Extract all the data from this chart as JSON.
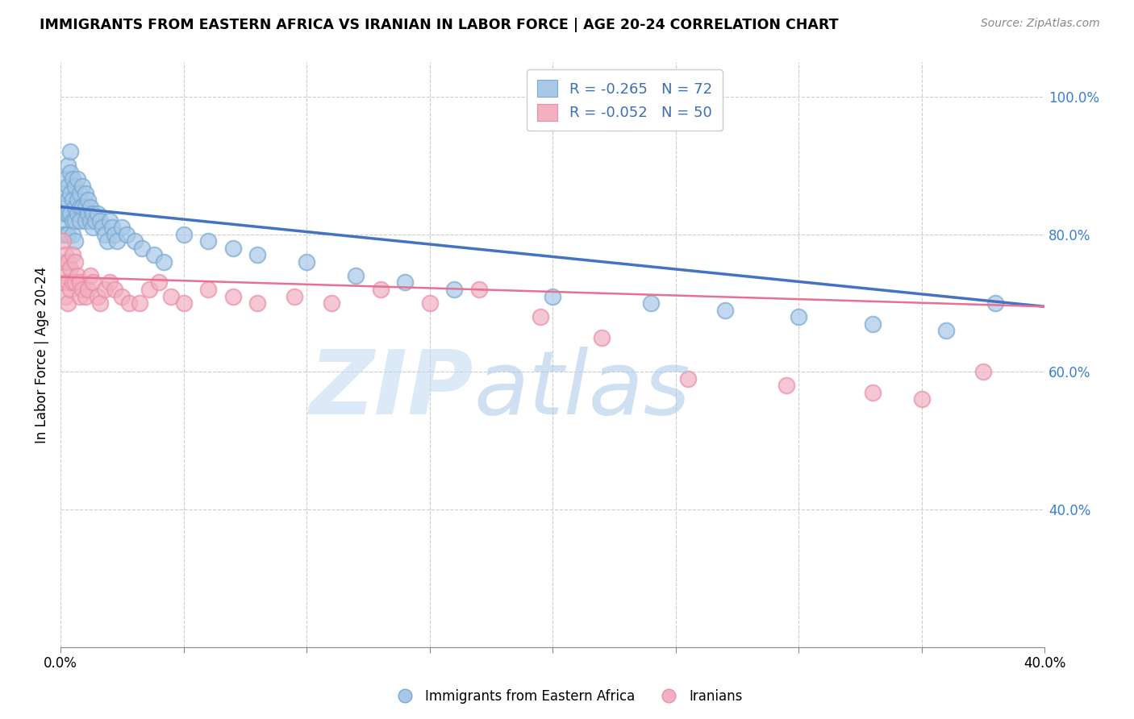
{
  "title": "IMMIGRANTS FROM EASTERN AFRICA VS IRANIAN IN LABOR FORCE | AGE 20-24 CORRELATION CHART",
  "source": "Source: ZipAtlas.com",
  "ylabel": "In Labor Force | Age 20-24",
  "xlim": [
    0.0,
    0.4
  ],
  "ylim": [
    0.2,
    1.05
  ],
  "x_ticks": [
    0.0,
    0.05,
    0.1,
    0.15,
    0.2,
    0.25,
    0.3,
    0.35,
    0.4
  ],
  "x_tick_labels": [
    "0.0%",
    "",
    "",
    "",
    "",
    "",
    "",
    "",
    "40.0%"
  ],
  "y_ticks_right": [
    0.4,
    0.6,
    0.8,
    1.0
  ],
  "y_tick_labels_right": [
    "40.0%",
    "60.0%",
    "80.0%",
    "100.0%"
  ],
  "blue_R": "-0.265",
  "blue_N": "72",
  "pink_R": "-0.052",
  "pink_N": "50",
  "blue_color": "#A8C8E8",
  "pink_color": "#F2B0C0",
  "blue_edge_color": "#7AAAD0",
  "pink_edge_color": "#E890A8",
  "blue_line_color": "#4472C4",
  "pink_line_color": "#E87090",
  "watermark_zip_color": "#C8DCF0",
  "watermark_atlas_color": "#A8C8E8",
  "blue_scatter_x": [
    0.001,
    0.001,
    0.001,
    0.002,
    0.002,
    0.002,
    0.002,
    0.003,
    0.003,
    0.003,
    0.003,
    0.003,
    0.004,
    0.004,
    0.004,
    0.004,
    0.005,
    0.005,
    0.005,
    0.005,
    0.006,
    0.006,
    0.006,
    0.006,
    0.007,
    0.007,
    0.007,
    0.008,
    0.008,
    0.008,
    0.009,
    0.009,
    0.01,
    0.01,
    0.01,
    0.011,
    0.011,
    0.012,
    0.012,
    0.013,
    0.013,
    0.014,
    0.015,
    0.016,
    0.017,
    0.018,
    0.019,
    0.02,
    0.021,
    0.022,
    0.023,
    0.025,
    0.027,
    0.03,
    0.033,
    0.038,
    0.042,
    0.05,
    0.06,
    0.07,
    0.08,
    0.1,
    0.12,
    0.14,
    0.16,
    0.2,
    0.24,
    0.27,
    0.3,
    0.33,
    0.36,
    0.38
  ],
  "blue_scatter_y": [
    0.84,
    0.82,
    0.8,
    0.88,
    0.86,
    0.83,
    0.8,
    0.9,
    0.87,
    0.85,
    0.83,
    0.8,
    0.92,
    0.89,
    0.86,
    0.83,
    0.88,
    0.85,
    0.82,
    0.8,
    0.87,
    0.84,
    0.82,
    0.79,
    0.88,
    0.85,
    0.83,
    0.86,
    0.84,
    0.82,
    0.87,
    0.84,
    0.86,
    0.84,
    0.82,
    0.85,
    0.83,
    0.84,
    0.82,
    0.83,
    0.81,
    0.82,
    0.83,
    0.82,
    0.81,
    0.8,
    0.79,
    0.82,
    0.81,
    0.8,
    0.79,
    0.81,
    0.8,
    0.79,
    0.78,
    0.77,
    0.76,
    0.8,
    0.79,
    0.78,
    0.77,
    0.76,
    0.74,
    0.73,
    0.72,
    0.71,
    0.7,
    0.69,
    0.68,
    0.67,
    0.66,
    0.7
  ],
  "pink_scatter_x": [
    0.001,
    0.001,
    0.001,
    0.002,
    0.002,
    0.002,
    0.003,
    0.003,
    0.003,
    0.004,
    0.004,
    0.005,
    0.005,
    0.006,
    0.006,
    0.007,
    0.008,
    0.008,
    0.009,
    0.01,
    0.011,
    0.012,
    0.013,
    0.015,
    0.016,
    0.018,
    0.02,
    0.022,
    0.025,
    0.028,
    0.032,
    0.036,
    0.04,
    0.045,
    0.05,
    0.06,
    0.07,
    0.08,
    0.095,
    0.11,
    0.13,
    0.15,
    0.17,
    0.195,
    0.22,
    0.255,
    0.295,
    0.33,
    0.35,
    0.375
  ],
  "pink_scatter_y": [
    0.79,
    0.76,
    0.73,
    0.77,
    0.74,
    0.71,
    0.76,
    0.73,
    0.7,
    0.75,
    0.72,
    0.77,
    0.73,
    0.76,
    0.73,
    0.74,
    0.73,
    0.71,
    0.72,
    0.71,
    0.72,
    0.74,
    0.73,
    0.71,
    0.7,
    0.72,
    0.73,
    0.72,
    0.71,
    0.7,
    0.7,
    0.72,
    0.73,
    0.71,
    0.7,
    0.72,
    0.71,
    0.7,
    0.71,
    0.7,
    0.72,
    0.7,
    0.72,
    0.68,
    0.65,
    0.59,
    0.58,
    0.57,
    0.56,
    0.6
  ],
  "blue_trendline_x": [
    0.0,
    0.4
  ],
  "blue_trendline_y": [
    0.84,
    0.695
  ],
  "pink_trendline_x": [
    0.0,
    0.4
  ],
  "pink_trendline_y": [
    0.738,
    0.695
  ]
}
